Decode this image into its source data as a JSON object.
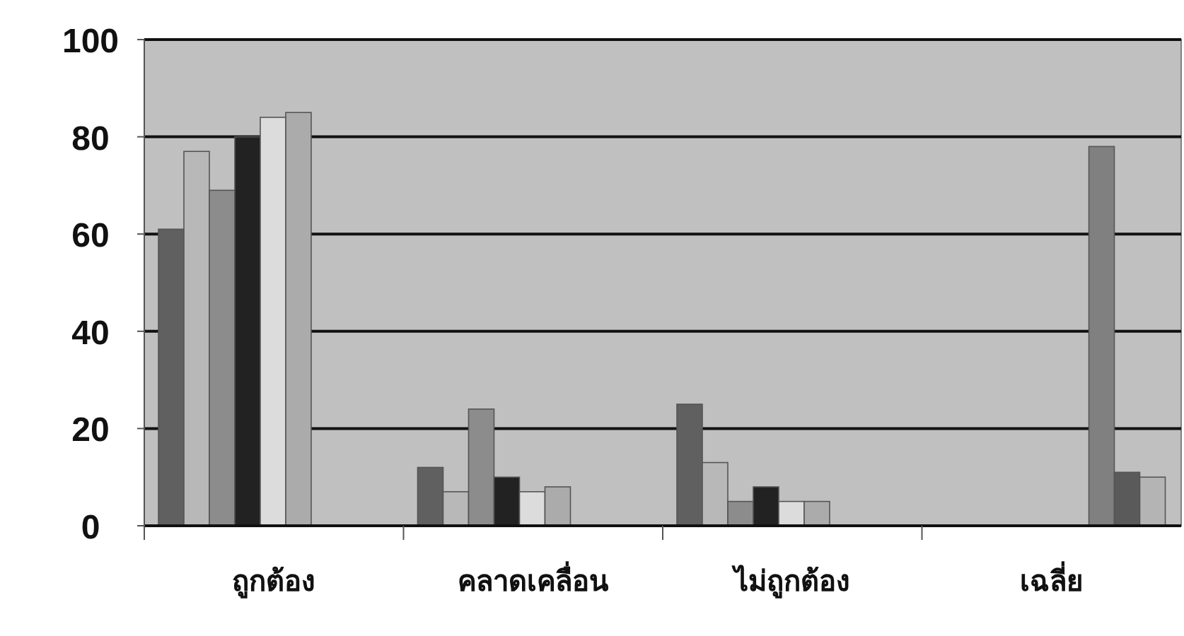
{
  "chart_data": {
    "type": "bar",
    "categories": [
      "ถูกต้อง",
      "คลาดเคลื่อน",
      "ไม่ถูกต้อง",
      "เฉลี่ย"
    ],
    "series": [
      {
        "color": "#606060",
        "values": [
          61,
          12,
          25,
          0
        ]
      },
      {
        "color": "#b8b8b8",
        "values": [
          77,
          7,
          13,
          0
        ]
      },
      {
        "color": "#8c8c8c",
        "values": [
          69,
          24,
          5,
          0
        ]
      },
      {
        "color": "#222222",
        "values": [
          80,
          10,
          8,
          0
        ]
      },
      {
        "color": "#dcdcdc",
        "values": [
          84,
          7,
          5,
          0
        ]
      },
      {
        "color": "#ababab",
        "values": [
          85,
          8,
          5,
          0
        ]
      },
      {
        "color": "#808080",
        "values": [
          0,
          0,
          0,
          78
        ]
      },
      {
        "color": "#5a5a5a",
        "values": [
          0,
          0,
          0,
          11
        ]
      },
      {
        "color": "#b4b4b4",
        "values": [
          0,
          0,
          0,
          10
        ]
      }
    ],
    "ylim": [
      0,
      100
    ],
    "yticks": [
      0,
      20,
      40,
      60,
      80,
      100
    ],
    "grid": "y"
  }
}
